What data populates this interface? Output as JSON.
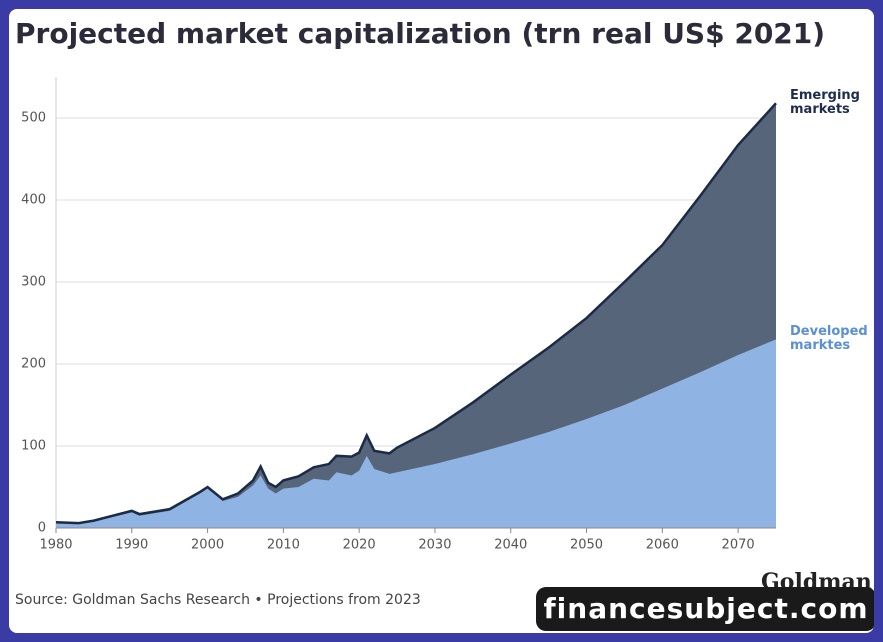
{
  "chart_data": {
    "type": "stacked-area",
    "title": "Projected market capitalization (trn real US$ 2021)",
    "x": [
      1980,
      1983,
      1985,
      1990,
      1991,
      1995,
      1999,
      2000,
      2002,
      2004,
      2006,
      2007,
      2008,
      2009,
      2010,
      2012,
      2014,
      2016,
      2017,
      2019,
      2020,
      2021,
      2022,
      2024,
      2025,
      2030,
      2035,
      2040,
      2045,
      2050,
      2055,
      2060,
      2065,
      2070,
      2075
    ],
    "series": [
      {
        "name": "Developed marktes",
        "color": "#8fb3e3",
        "label_color": "#5b8fd6",
        "values": [
          6,
          5,
          8,
          19,
          15,
          21,
          42,
          48,
          33,
          38,
          52,
          64,
          48,
          42,
          48,
          50,
          60,
          58,
          68,
          64,
          70,
          88,
          72,
          66,
          68,
          78,
          90,
          103,
          117,
          133,
          150,
          170,
          190,
          211,
          230
        ]
      },
      {
        "name": "Emerging markets",
        "color": "#56657a",
        "label_color": "#1f2d4d",
        "values": [
          1,
          1,
          1,
          2,
          2,
          2,
          2,
          2,
          2,
          4,
          6,
          11,
          7,
          8,
          10,
          13,
          14,
          20,
          20,
          23,
          22,
          25,
          22,
          25,
          30,
          44,
          63,
          84,
          103,
          123,
          150,
          175,
          215,
          256,
          288
        ]
      }
    ],
    "line_color": "#1c2b45",
    "xlim": [
      1980,
      2075
    ],
    "xticks": [
      1980,
      1990,
      2000,
      2010,
      2020,
      2030,
      2040,
      2050,
      2060,
      2070
    ],
    "ylim": [
      0,
      550
    ],
    "yticks": [
      0,
      100,
      200,
      300,
      400,
      500
    ],
    "grid": true
  },
  "source": "Source: Goldman Sachs Research • Projections from 2023",
  "logo": "Goldman Sachs",
  "watermark": "financesubject.com"
}
